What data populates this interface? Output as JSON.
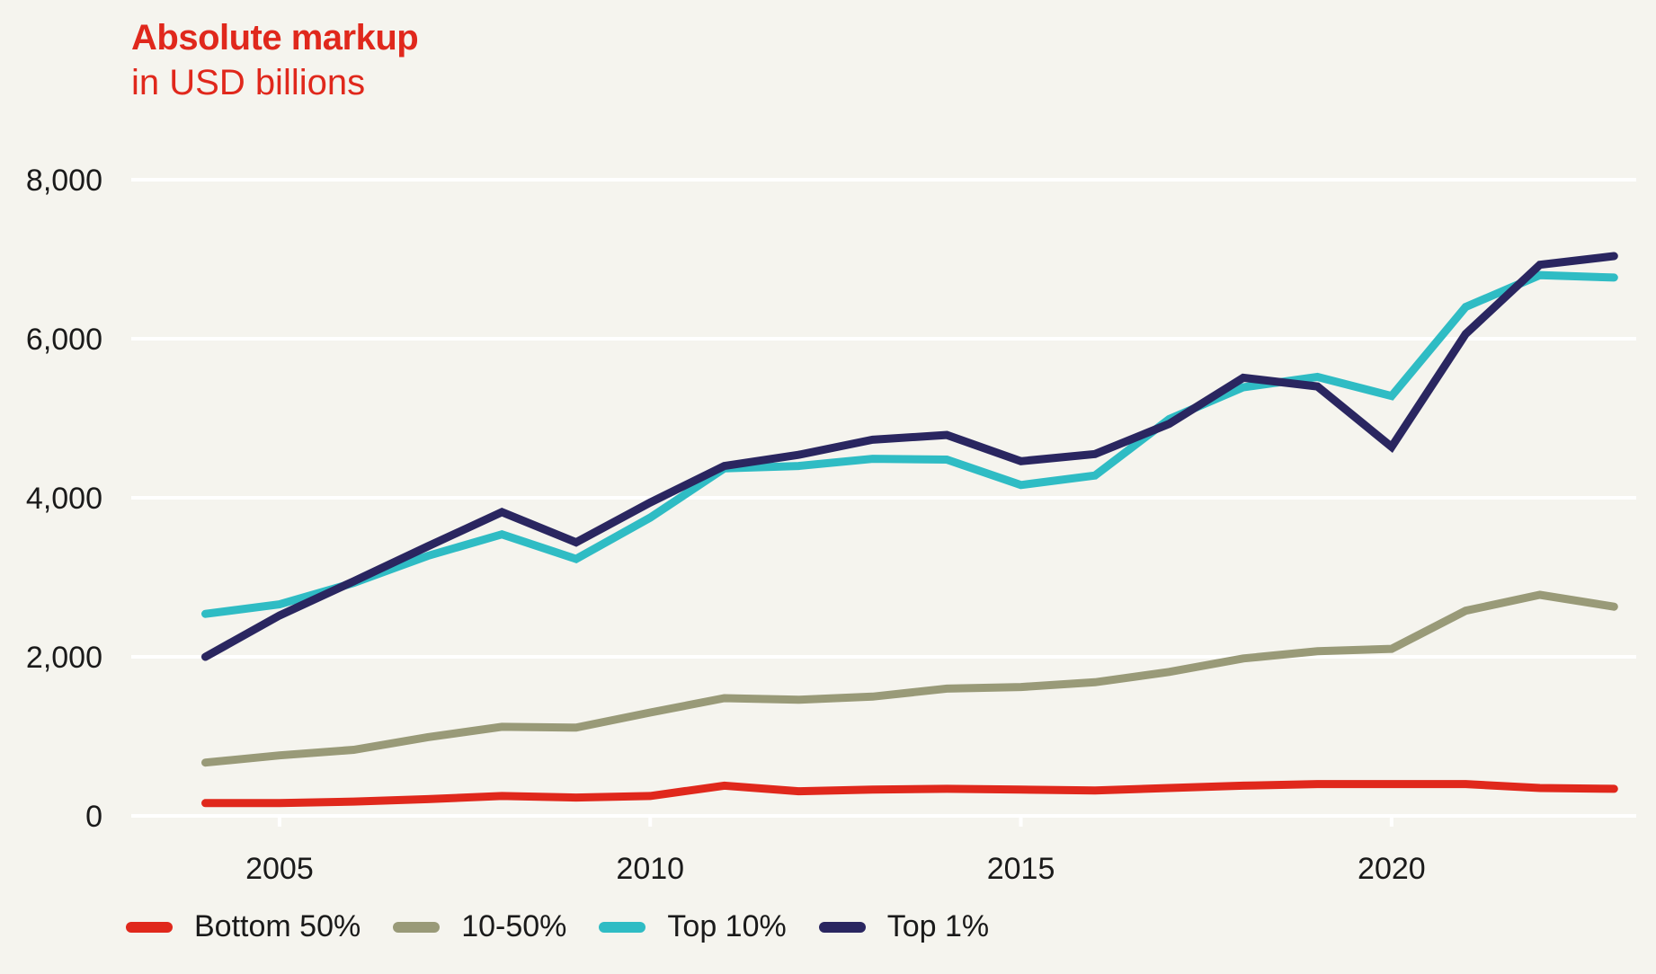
{
  "chart_data": {
    "type": "line",
    "title": "Absolute markup",
    "subtitle": "in USD billions",
    "xlabel": "",
    "ylabel": "",
    "x": [
      2004,
      2005,
      2006,
      2007,
      2008,
      2009,
      2010,
      2011,
      2012,
      2013,
      2014,
      2015,
      2016,
      2017,
      2018,
      2019,
      2020,
      2021,
      2022,
      2023
    ],
    "xlim": [
      2003.0,
      2023.3
    ],
    "ylim": [
      0,
      8000
    ],
    "x_ticks": [
      2005,
      2010,
      2015,
      2020
    ],
    "x_tick_labels": [
      "2005",
      "2010",
      "2015",
      "2020"
    ],
    "y_ticks": [
      0,
      2000,
      4000,
      6000,
      8000
    ],
    "y_tick_labels": [
      "0",
      "2,000",
      "4,000",
      "6,000",
      "8,000"
    ],
    "grid": true,
    "legend_position": "bottom-left",
    "series": [
      {
        "name": "Bottom 50%",
        "color": "#e0281c",
        "values": [
          160,
          160,
          180,
          210,
          250,
          230,
          250,
          380,
          310,
          330,
          340,
          330,
          320,
          350,
          380,
          400,
          400,
          400,
          350,
          340
        ]
      },
      {
        "name": "10-50%",
        "color": "#999a78",
        "values": [
          670,
          760,
          830,
          990,
          1120,
          1110,
          1300,
          1480,
          1460,
          1500,
          1600,
          1620,
          1680,
          1810,
          1980,
          2070,
          2100,
          2580,
          2780,
          2630
        ]
      },
      {
        "name": "Top 10%",
        "color": "#2fbcc4",
        "values": [
          2540,
          2660,
          2930,
          3270,
          3540,
          3230,
          3750,
          4370,
          4400,
          4490,
          4480,
          4160,
          4280,
          4990,
          5390,
          5520,
          5280,
          6400,
          6800,
          6770
        ]
      },
      {
        "name": "Top 1%",
        "color": "#2a2660",
        "values": [
          2000,
          2520,
          2950,
          3390,
          3820,
          3440,
          3940,
          4400,
          4540,
          4730,
          4790,
          4460,
          4550,
          4930,
          5510,
          5400,
          4640,
          6060,
          6930,
          7040
        ]
      }
    ]
  }
}
